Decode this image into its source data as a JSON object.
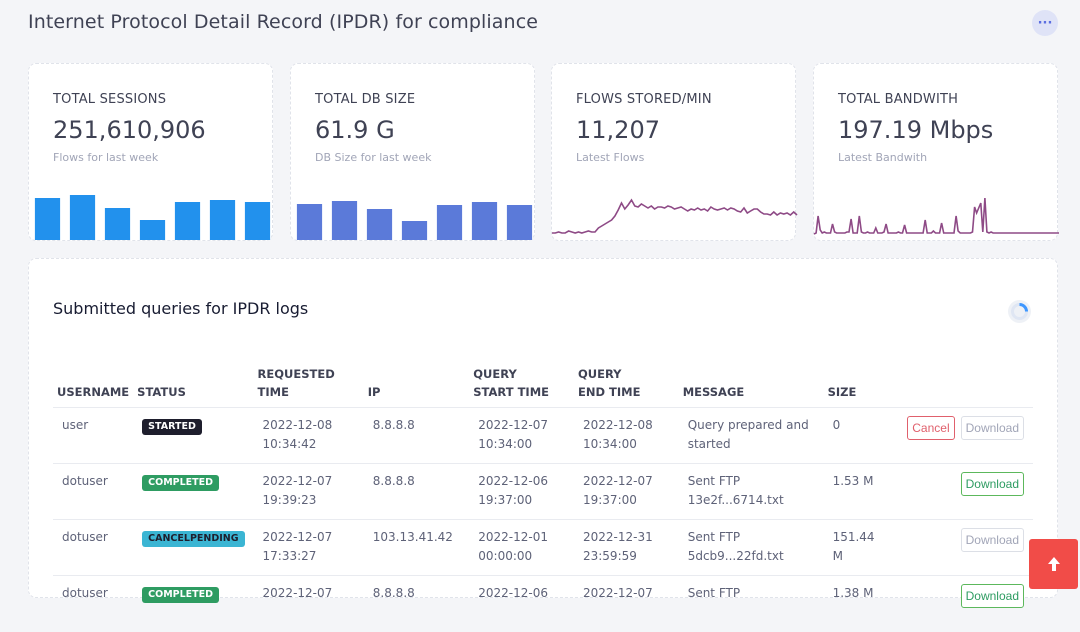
{
  "header": {
    "title": "Internet Protocol Detail Record (IPDR) for compliance",
    "more_icon": "ellipsis-icon"
  },
  "stats": [
    {
      "label": "TOTAL SESSIONS",
      "value": "251,610,906",
      "sub": "Flows for last week",
      "color": "#2291ed",
      "chart_type": "bar",
      "values": [
        42,
        45,
        32,
        20,
        38,
        40,
        38
      ]
    },
    {
      "label": "TOTAL DB SIZE",
      "value": "61.9 G",
      "sub": "DB Size for last week",
      "color": "#5b7ad9",
      "chart_type": "bar",
      "values": [
        36,
        39,
        31,
        19,
        35,
        38,
        35
      ]
    },
    {
      "label": "FLOWS STORED/MIN",
      "value": "11,207",
      "sub": "Latest Flows",
      "color": "#8e4a86",
      "chart_type": "line",
      "values": [
        3,
        3,
        4,
        3,
        3,
        5,
        4,
        3,
        4,
        3,
        4,
        5,
        4,
        4,
        8,
        10,
        12,
        14,
        16,
        20,
        26,
        33,
        27,
        31,
        36,
        30,
        29,
        32,
        30,
        28,
        30,
        27,
        29,
        29,
        28,
        30,
        29,
        27,
        28,
        29,
        27,
        25,
        27,
        26,
        28,
        26,
        27,
        25,
        29,
        27,
        26,
        27,
        28,
        26,
        28,
        27,
        25,
        24,
        28,
        23,
        25,
        27,
        27,
        24,
        22,
        22,
        21,
        24,
        21,
        23,
        22,
        23,
        21,
        24,
        21
      ]
    },
    {
      "label": "TOTAL BANDWITH",
      "value": "197.19 Mbps",
      "sub": "Latest Bandwith",
      "color": "#8e4a86",
      "chart_type": "line",
      "values": [
        2,
        3,
        20,
        6,
        3,
        4,
        3,
        3,
        3,
        12,
        4,
        3,
        3,
        3,
        3,
        3,
        4,
        4,
        17,
        3,
        3,
        3,
        20,
        4,
        3,
        3,
        4,
        3,
        3,
        3,
        8,
        3,
        3,
        3,
        4,
        12,
        3,
        3,
        3,
        3,
        3,
        4,
        3,
        3,
        11,
        3,
        3,
        3,
        3,
        3,
        3,
        3,
        3,
        3,
        16,
        3,
        3,
        3,
        5,
        3,
        3,
        3,
        13,
        3,
        3,
        3,
        3,
        3,
        3,
        20,
        5,
        3,
        3,
        3,
        3,
        3,
        3,
        4,
        29,
        23,
        28,
        33,
        4,
        38,
        4,
        3,
        4,
        3,
        3,
        3,
        3,
        3,
        3,
        3,
        3,
        3,
        3,
        3,
        3,
        3,
        3,
        3,
        3,
        3,
        3,
        3,
        3,
        3,
        3,
        3,
        3,
        3,
        3,
        3,
        3,
        3,
        3,
        3,
        3,
        3
      ]
    }
  ],
  "queries": {
    "title": "Submitted queries for IPDR logs",
    "columns": [
      {
        "l1": "",
        "l2": "USERNAME"
      },
      {
        "l1": "",
        "l2": "STATUS"
      },
      {
        "l1": "",
        "l2": "REQUESTED TIME"
      },
      {
        "l1": "",
        "l2": "IP"
      },
      {
        "l1": "QUERY",
        "l2": "START TIME"
      },
      {
        "l1": "QUERY",
        "l2": "END TIME"
      },
      {
        "l1": "",
        "l2": "MESSAGE"
      },
      {
        "l1": "",
        "l2": "SIZE"
      },
      {
        "l1": "",
        "l2": ""
      }
    ],
    "rows": [
      {
        "username": "user",
        "status": "STARTED",
        "status_class": "b-started",
        "requested": [
          "2022-12-08",
          "10:34:42"
        ],
        "ip": "8.8.8.8",
        "start": [
          "2022-12-07",
          "10:34:00"
        ],
        "end": [
          "2022-12-08",
          "10:34:00"
        ],
        "message": [
          "Query prepared and",
          "started"
        ],
        "size": [
          "0",
          ""
        ],
        "cancel": "Cancel",
        "download": "Download",
        "download_active": false
      },
      {
        "username": "dotuser",
        "status": "COMPLETED",
        "status_class": "b-completed",
        "requested": [
          "2022-12-07",
          "19:39:23"
        ],
        "ip": "8.8.8.8",
        "start": [
          "2022-12-06",
          "19:37:00"
        ],
        "end": [
          "2022-12-07",
          "19:37:00"
        ],
        "message": [
          "Sent FTP",
          "13e2f...6714.txt"
        ],
        "size": [
          "1.53 M",
          ""
        ],
        "cancel": "",
        "download": "Download",
        "download_active": true
      },
      {
        "username": "dotuser",
        "status": "CANCELPENDING",
        "status_class": "b-cancelpending",
        "requested": [
          "2022-12-07",
          "17:33:27"
        ],
        "ip": "103.13.41.42",
        "start": [
          "2022-12-01",
          "00:00:00"
        ],
        "end": [
          "2022-12-31",
          "23:59:59"
        ],
        "message": [
          "Sent FTP",
          "5dcb9...22fd.txt"
        ],
        "size": [
          "151.44",
          "M"
        ],
        "cancel": "",
        "download": "Download",
        "download_active": false
      },
      {
        "username": "dotuser",
        "status": "COMPLETED",
        "status_class": "b-completed",
        "requested": [
          "2022-12-07",
          ""
        ],
        "ip": "8.8.8.8",
        "start": [
          "2022-12-06",
          ""
        ],
        "end": [
          "2022-12-07",
          ""
        ],
        "message": [
          "Sent FTP",
          ""
        ],
        "size": [
          "1.38 M",
          ""
        ],
        "cancel": "",
        "download": "Download",
        "download_active": true
      }
    ]
  },
  "scroll_top_icon": "arrow-up-icon",
  "loading_icon": "spinner-icon"
}
